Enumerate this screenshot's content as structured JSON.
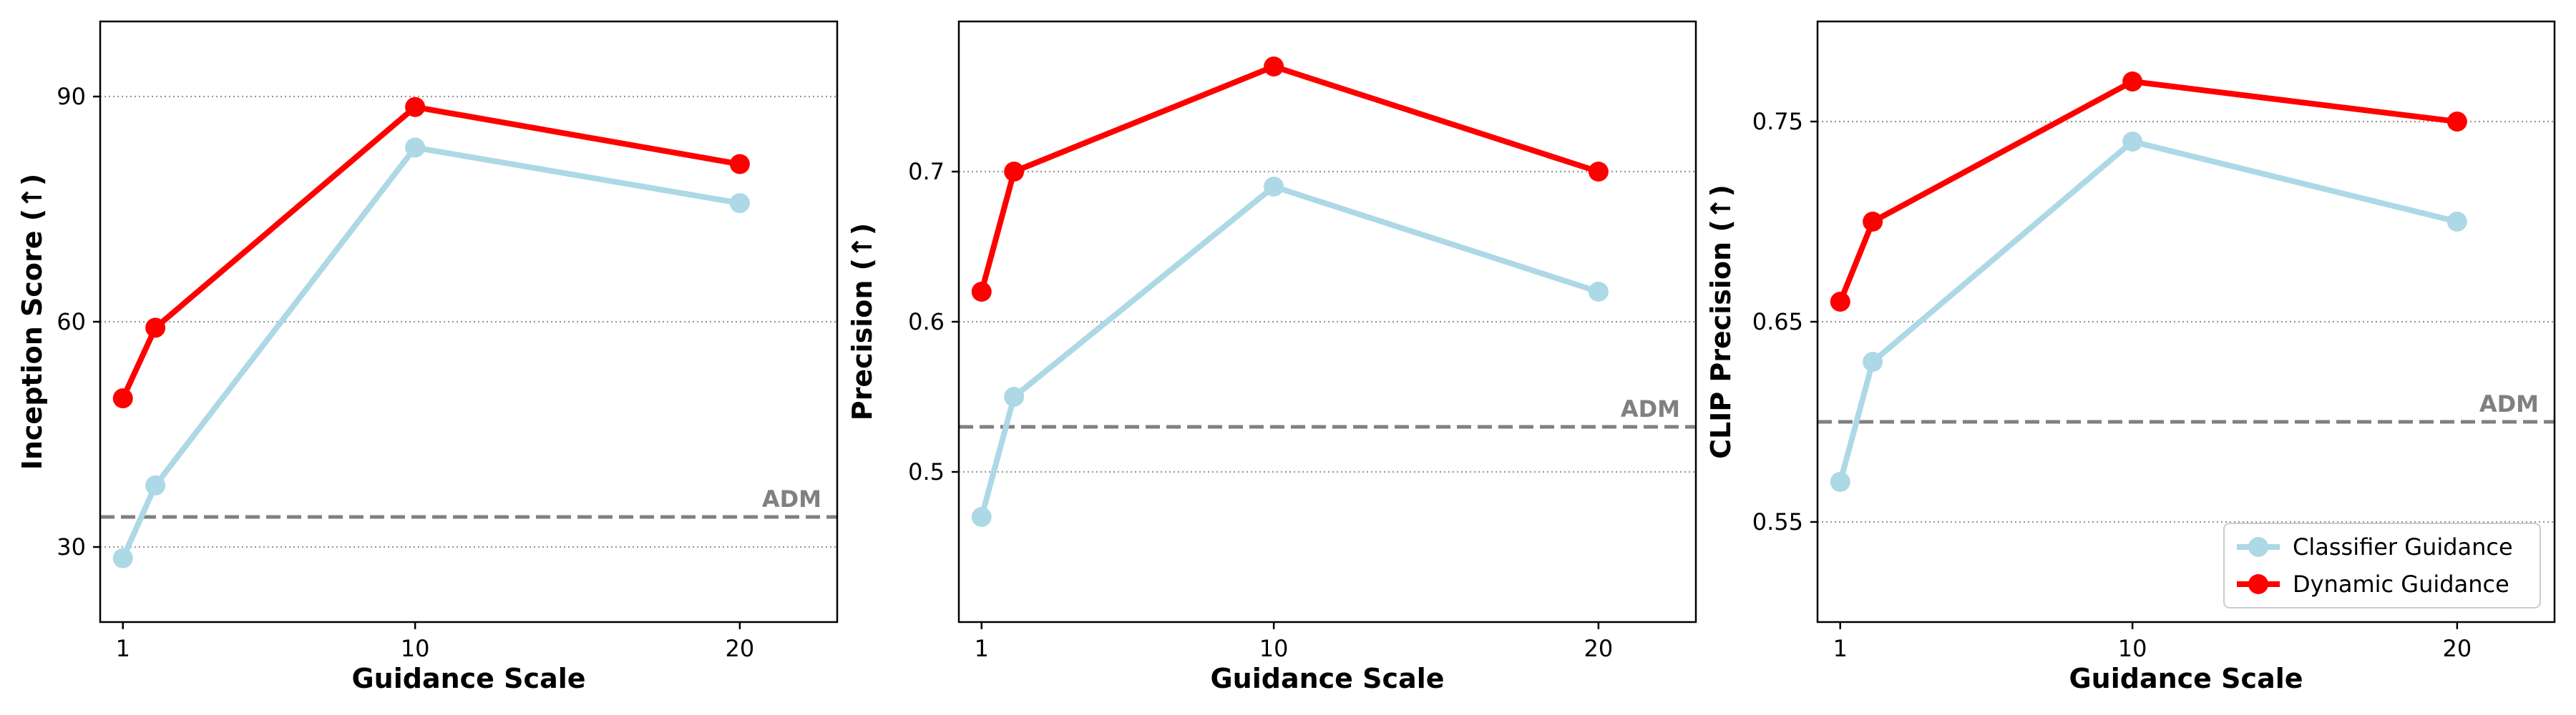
{
  "chart_data": [
    {
      "type": "line",
      "xlabel": "Guidance Scale",
      "ylabel": "Inception Score (↑)",
      "x": [
        1,
        2,
        10,
        20
      ],
      "xticks": [
        1,
        10,
        20
      ],
      "xlim": [
        0.3,
        23.0
      ],
      "yticks": [
        30,
        60,
        90
      ],
      "ylim": [
        20,
        100
      ],
      "grid": "y-dotted",
      "reference": {
        "label": "ADM",
        "value": 34
      },
      "series": [
        {
          "name": "Classifier Guidance",
          "color": "#add8e6",
          "values": [
            28.5,
            38.2,
            83.2,
            75.8
          ]
        },
        {
          "name": "Dynamic Guidance",
          "color": "#ff0000",
          "values": [
            49.8,
            59.2,
            88.6,
            81.0
          ]
        }
      ],
      "legend": false
    },
    {
      "type": "line",
      "xlabel": "Guidance Scale",
      "ylabel": "Precision (↑)",
      "x": [
        1,
        2,
        10,
        20
      ],
      "xticks": [
        1,
        10,
        20
      ],
      "xlim": [
        0.3,
        23.0
      ],
      "yticks": [
        0.5,
        0.6,
        0.7
      ],
      "ylim": [
        0.4,
        0.8
      ],
      "grid": "y-dotted",
      "reference": {
        "label": "ADM",
        "value": 0.53
      },
      "series": [
        {
          "name": "Classifier Guidance",
          "color": "#add8e6",
          "values": [
            0.47,
            0.55,
            0.69,
            0.62
          ]
        },
        {
          "name": "Dynamic Guidance",
          "color": "#ff0000",
          "values": [
            0.62,
            0.7,
            0.77,
            0.7
          ]
        }
      ],
      "legend": false
    },
    {
      "type": "line",
      "xlabel": "Guidance Scale",
      "ylabel": "CLIP Precision (↑)",
      "x": [
        1,
        2,
        10,
        20
      ],
      "xticks": [
        1,
        10,
        20
      ],
      "xlim": [
        0.3,
        23.0
      ],
      "yticks": [
        0.55,
        0.65,
        0.75
      ],
      "ylim": [
        0.5,
        0.8
      ],
      "grid": "y-dotted",
      "reference": {
        "label": "ADM",
        "value": 0.6
      },
      "series": [
        {
          "name": "Classifier Guidance",
          "color": "#add8e6",
          "values": [
            0.57,
            0.63,
            0.74,
            0.7
          ]
        },
        {
          "name": "Dynamic Guidance",
          "color": "#ff0000",
          "values": [
            0.66,
            0.7,
            0.77,
            0.75
          ]
        }
      ],
      "legend": "bottom-right"
    }
  ]
}
